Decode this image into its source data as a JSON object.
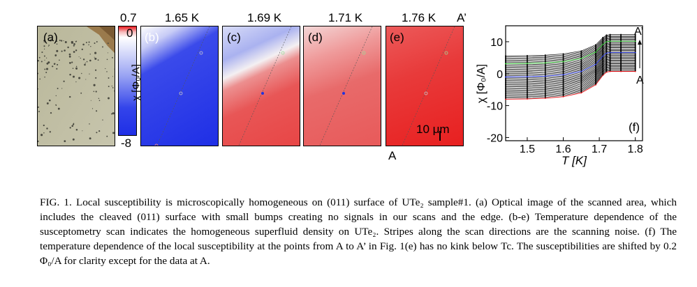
{
  "figure": {
    "panels": {
      "a": {
        "label": "(a)"
      },
      "b": {
        "label": "(b)",
        "temperature": "1.65 K"
      },
      "c": {
        "label": "(c)",
        "temperature": "1.69 K"
      },
      "d": {
        "label": "(d)",
        "temperature": "1.71 K"
      },
      "e": {
        "label": "(e)",
        "temperature": "1.76 K"
      },
      "f": {
        "label": "(f)"
      }
    },
    "colorbar": {
      "max": "0.7",
      "zero": "0",
      "min": "-8",
      "label": "χ [Φ₀/A]"
    },
    "scale_bar": "10 μm",
    "point_start": "A",
    "point_end": "A’",
    "colors": {
      "high": "#e8161b",
      "mid": "#ffffff",
      "low": "#1f2fe6"
    }
  },
  "chart_data": {
    "type": "line",
    "title": "",
    "xlabel": "T [K]",
    "ylabel": "χ [Φ₀/A]",
    "xlim": [
      1.44,
      1.82
    ],
    "ylim": [
      -21,
      15
    ],
    "xticks": [
      "1.5",
      "1.6",
      "1.7",
      "1.8"
    ],
    "xtick_values": [
      1.5,
      1.6,
      1.7,
      1.8
    ],
    "yticks": [
      "10",
      "0",
      "-10",
      "-20"
    ],
    "ytick_values": [
      10,
      0,
      -10,
      -20
    ],
    "annotations": {
      "top": "A’",
      "bottom": "A",
      "panel": "(f)"
    },
    "n_series": 40,
    "series_offset": 0.2,
    "base_curve": {
      "T": [
        1.44,
        1.5,
        1.55,
        1.6,
        1.65,
        1.69,
        1.71,
        1.72,
        1.73,
        1.76,
        1.8
      ],
      "chi": [
        -8.0,
        -7.9,
        -7.7,
        -7.2,
        -6.0,
        -3.5,
        -0.5,
        0.5,
        0.7,
        0.7,
        0.7
      ]
    },
    "highlight_series": [
      {
        "index": 0,
        "color": "#e8161b"
      },
      {
        "index": 20,
        "color": "#2030e0"
      },
      {
        "index": 32,
        "color": "#22bb22"
      }
    ]
  },
  "caption": {
    "fig": "FIG. 1.",
    "text": "Local susceptibility is microscopically homogeneous on (011) surface of UTe₂ sample#1. (a) Optical image of the scanned area, which includes the cleaved (011) surface with small bumps creating no signals in our scans and the edge. (b-e) Temperature dependence of the susceptometry scan indicates the homogeneous superfluid density on UTe₂. Stripes along the scan directions are the scanning noise. (f) The temperature dependence of the local susceptibility at the points from A to A’ in Fig. 1(e) has no kink below Tc. The susceptibilities are shifted by 0.2 Φ₀/A for clarity except for the data at A."
  }
}
